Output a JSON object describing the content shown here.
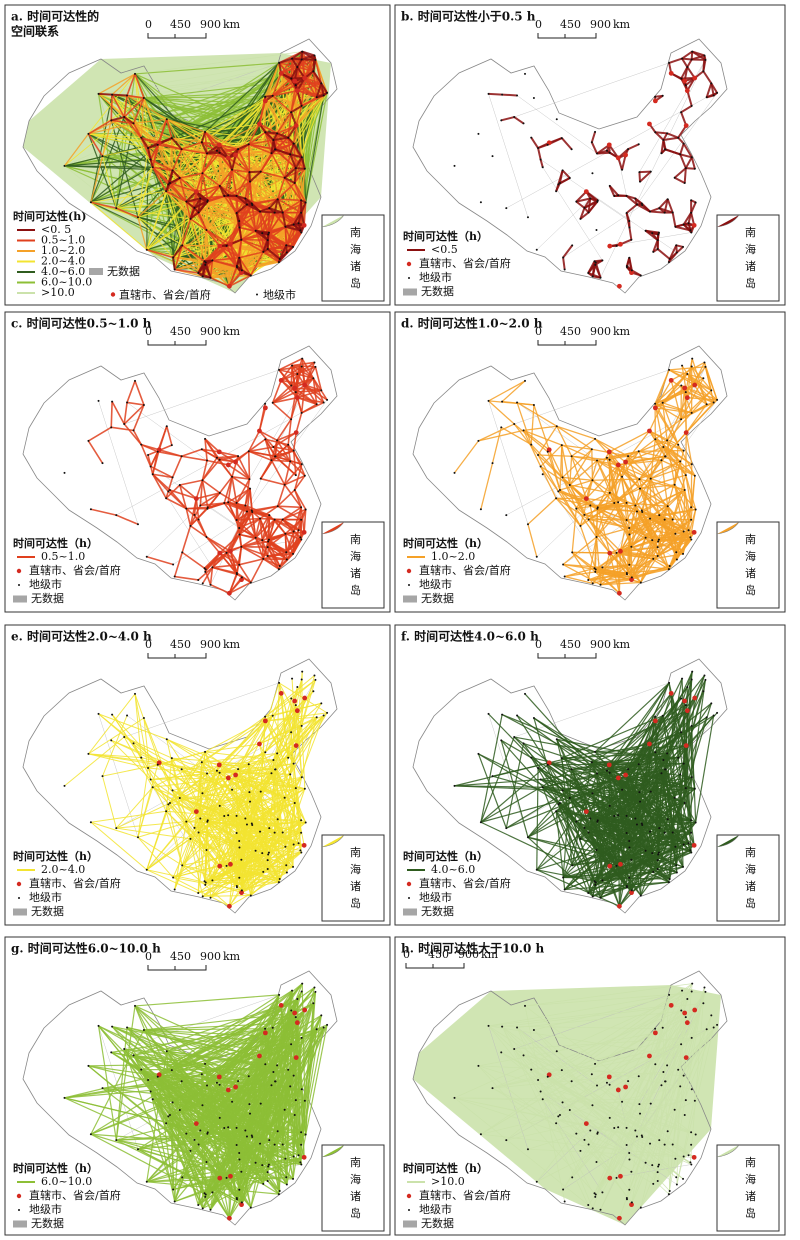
{
  "scale_labels": [
    "0",
    "450",
    "900",
    "km"
  ],
  "inset_chars": [
    "南",
    "海",
    "诸",
    "岛"
  ],
  "capital_color": "#d42a20",
  "city_color": "#111111",
  "nodata_color": "#a6a6a6",
  "panels": [
    {
      "title": [
        "a. 时间可达性的",
        "空间联系"
      ],
      "legend_title": "时间可达性(h)",
      "classes": [
        {
          "label": "<0. 5",
          "color": "#8b1010"
        },
        {
          "label": "0.5~1.0",
          "color": "#e0401e"
        },
        {
          "label": "1.0~2.0",
          "color": "#f5a128"
        },
        {
          "label": "2.0~4.0",
          "color": "#f3e431"
        },
        {
          "label": "4.0~6.0",
          "color": "#2f5c1f"
        },
        {
          "label": "6.0~10.0",
          "color": "#8dbf36"
        },
        {
          "label": ">10.0",
          "color": "#cbe2ab"
        }
      ],
      "capital": "直辖市、省会/首府",
      "city": "地级市",
      "nodata": "无数据"
    },
    {
      "title": [
        "b. 时间可达性小于0.5 h"
      ],
      "legend_title": "时间可达性（h）",
      "classes": [
        {
          "label": "<0.5",
          "color": "#8b1010"
        }
      ],
      "capital": "直辖市、省会/首府",
      "city": "地级市",
      "nodata": "无数据"
    },
    {
      "title": [
        "c. 时间可达性0.5~1.0 h"
      ],
      "legend_title": "时间可达性（h）",
      "classes": [
        {
          "label": "0.5~1.0",
          "color": "#e0401e"
        }
      ],
      "capital": "直辖市、省会/首府",
      "city": "地级市",
      "nodata": "无数据"
    },
    {
      "title": [
        "d. 时间可达性1.0~2.0 h"
      ],
      "legend_title": "时间可达性（h）",
      "classes": [
        {
          "label": "1.0~2.0",
          "color": "#f5a128"
        }
      ],
      "capital": "直辖市、省会/首府",
      "city": "地级市",
      "nodata": "无数据"
    },
    {
      "title": [
        "e. 时间可达性2.0~4.0 h"
      ],
      "legend_title": "时间可达性（h）",
      "classes": [
        {
          "label": "2.0~4.0",
          "color": "#f3e431"
        }
      ],
      "capital": "直辖市、省会/首府",
      "city": "地级市",
      "nodata": "无数据"
    },
    {
      "title": [
        "f. 时间可达性4.0~6.0 h"
      ],
      "legend_title": "时间可达性（h）",
      "classes": [
        {
          "label": "4.0~6.0",
          "color": "#2f5c1f"
        }
      ],
      "capital": "直辖市、省会/首府",
      "city": "地级市",
      "nodata": "无数据"
    },
    {
      "title": [
        "g. 时间可达性6.0~10.0 h"
      ],
      "legend_title": "时间可达性（h）",
      "classes": [
        {
          "label": "6.0~10.0",
          "color": "#8dbf36"
        }
      ],
      "capital": "直辖市、省会/首府",
      "city": "地级市",
      "nodata": "无数据"
    },
    {
      "title": [
        "h. 时间可达性大于10.0 h"
      ],
      "legend_title": "时间可达性（h）",
      "classes": [
        {
          "label": ">10.0",
          "color": "#cbe2ab"
        }
      ],
      "capital": "直辖市、省会/首府",
      "city": "地级市",
      "nodata": "无数据"
    }
  ]
}
